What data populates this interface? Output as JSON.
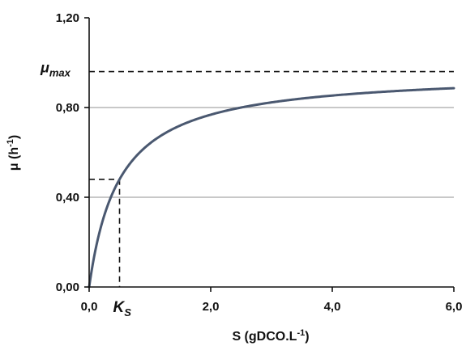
{
  "chart_data": {
    "type": "line",
    "title": "",
    "xlabel": {
      "base": "S (gDCO.L",
      "sup": "-1",
      "tail": ")"
    },
    "ylabel": {
      "base": "μ (h",
      "sup": "-1",
      "tail": ")"
    },
    "xlim": [
      0,
      6
    ],
    "ylim": [
      0,
      1.2
    ],
    "x_ticks": [
      0,
      2,
      4,
      6
    ],
    "x_tick_labels": [
      "0,0",
      "2,0",
      "4,0",
      "6,0"
    ],
    "y_ticks": [
      0,
      0.4,
      0.8,
      1.2
    ],
    "y_tick_labels": [
      "0,00",
      "0,40",
      "0,80",
      "1,20"
    ],
    "gridlines_y": [
      0.4,
      0.8
    ],
    "grid_x": false,
    "legend": "none",
    "model": "monod",
    "mu_max": 0.96,
    "Ks": 0.5,
    "series": [
      {
        "values_x": [
          0,
          0.05,
          0.1,
          0.2,
          0.3,
          0.5,
          0.75,
          1.0,
          1.5,
          2.0,
          2.5,
          3.0,
          3.5,
          4.0,
          4.5,
          5.0,
          5.5,
          6.0
        ],
        "values_y": [
          0,
          0.087,
          0.16,
          0.274,
          0.36,
          0.48,
          0.576,
          0.64,
          0.72,
          0.768,
          0.8,
          0.823,
          0.84,
          0.853,
          0.864,
          0.873,
          0.88,
          0.886
        ]
      }
    ],
    "annotations": {
      "mu_max": {
        "main": "μ",
        "sub": "max",
        "value": 0.96
      },
      "Ks": {
        "main": "K",
        "sub": "S",
        "x": 0.5,
        "y": 0.48
      }
    },
    "colors": {
      "curve": "#4a5870",
      "grid": "#a8a8a8",
      "axis": "#111111",
      "dash": "#111111"
    }
  }
}
